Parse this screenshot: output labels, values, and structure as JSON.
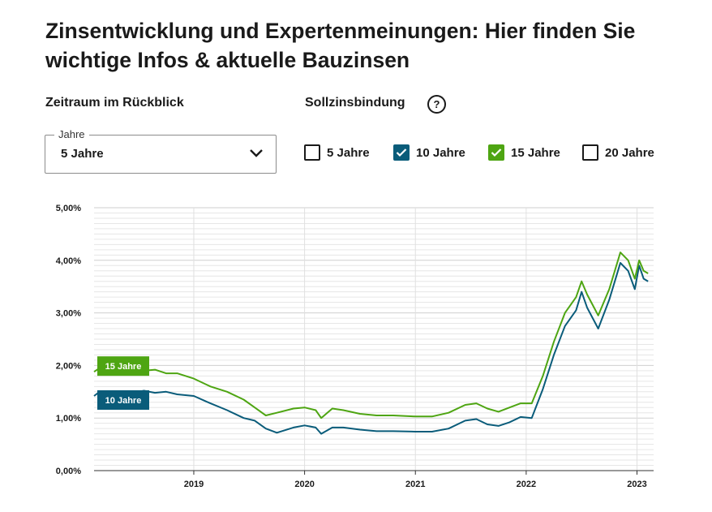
{
  "page": {
    "title_line1": "Zinsentwicklung und Expertenmeinungen: Hier finden Sie",
    "title_line2": "wichtige Infos & aktuelle Bauzinsen"
  },
  "controls": {
    "period_label": "Zeitraum im Rückblick",
    "fixation_label": "Sollzinsbindung",
    "help_symbol": "?",
    "select_legend": "Jahre",
    "select_value": "5 Jahre",
    "checkboxes": [
      {
        "label": "5 Jahre",
        "checked": false
      },
      {
        "label": "10 Jahre",
        "checked": true,
        "color": "#0a5c7a"
      },
      {
        "label": "15 Jahre",
        "checked": true,
        "color": "#4ea512"
      },
      {
        "label": "20 Jahre",
        "checked": false
      }
    ]
  },
  "chart_data": {
    "type": "line",
    "title": "",
    "xlabel": "",
    "ylabel": "",
    "ylim": [
      0,
      5
    ],
    "xlim": [
      2018.1,
      2023.15
    ],
    "y_ticks": [
      "0,00%",
      "1,00%",
      "2,00%",
      "3,00%",
      "4,00%",
      "5,00%"
    ],
    "x_ticks": [
      {
        "value": 2019,
        "label": "2019"
      },
      {
        "value": 2020,
        "label": "2020"
      },
      {
        "value": 2021,
        "label": "2021"
      },
      {
        "value": 2022,
        "label": "2022"
      },
      {
        "value": 2023,
        "label": "2023"
      }
    ],
    "grid": true,
    "series": [
      {
        "name": "10 Jahre",
        "color": "#0a5c7a",
        "x": [
          2018.1,
          2018.15,
          2018.3,
          2018.45,
          2018.55,
          2018.65,
          2018.75,
          2018.85,
          2019.0,
          2019.15,
          2019.3,
          2019.45,
          2019.55,
          2019.65,
          2019.75,
          2019.9,
          2020.0,
          2020.1,
          2020.15,
          2020.25,
          2020.35,
          2020.5,
          2020.65,
          2020.8,
          2021.0,
          2021.15,
          2021.3,
          2021.45,
          2021.55,
          2021.65,
          2021.75,
          2021.85,
          2021.95,
          2022.05,
          2022.15,
          2022.25,
          2022.35,
          2022.45,
          2022.5,
          2022.55,
          2022.65,
          2022.75,
          2022.85,
          2022.92,
          2022.98,
          2023.02,
          2023.06,
          2023.1
        ],
        "values": [
          1.42,
          1.5,
          1.42,
          1.48,
          1.52,
          1.48,
          1.5,
          1.45,
          1.42,
          1.28,
          1.15,
          1.0,
          0.95,
          0.8,
          0.72,
          0.82,
          0.86,
          0.82,
          0.7,
          0.82,
          0.82,
          0.78,
          0.75,
          0.75,
          0.74,
          0.74,
          0.8,
          0.95,
          0.98,
          0.88,
          0.85,
          0.92,
          1.02,
          1.0,
          1.55,
          2.2,
          2.75,
          3.05,
          3.4,
          3.1,
          2.7,
          3.25,
          3.95,
          3.8,
          3.45,
          3.9,
          3.65,
          3.6
        ]
      },
      {
        "name": "15 Jahre",
        "color": "#4ea512",
        "x": [
          2018.1,
          2018.15,
          2018.3,
          2018.45,
          2018.55,
          2018.65,
          2018.75,
          2018.85,
          2019.0,
          2019.15,
          2019.3,
          2019.45,
          2019.55,
          2019.65,
          2019.75,
          2019.9,
          2020.0,
          2020.1,
          2020.15,
          2020.25,
          2020.35,
          2020.5,
          2020.65,
          2020.8,
          2021.0,
          2021.15,
          2021.3,
          2021.45,
          2021.55,
          2021.65,
          2021.75,
          2021.85,
          2021.95,
          2022.05,
          2022.15,
          2022.25,
          2022.35,
          2022.45,
          2022.5,
          2022.55,
          2022.65,
          2022.75,
          2022.85,
          2022.92,
          2022.98,
          2023.02,
          2023.06,
          2023.1
        ],
        "values": [
          1.88,
          1.95,
          1.9,
          1.85,
          1.9,
          1.92,
          1.85,
          1.85,
          1.75,
          1.6,
          1.5,
          1.35,
          1.2,
          1.05,
          1.1,
          1.18,
          1.2,
          1.15,
          1.0,
          1.18,
          1.15,
          1.08,
          1.05,
          1.05,
          1.03,
          1.03,
          1.1,
          1.25,
          1.28,
          1.18,
          1.12,
          1.2,
          1.28,
          1.28,
          1.8,
          2.45,
          3.0,
          3.3,
          3.6,
          3.35,
          2.95,
          3.45,
          4.15,
          4.0,
          3.65,
          4.0,
          3.8,
          3.75
        ]
      }
    ]
  }
}
